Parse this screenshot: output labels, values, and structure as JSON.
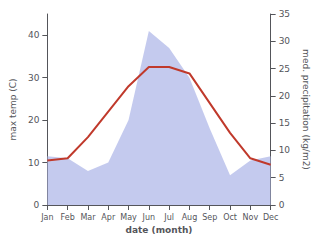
{
  "chart_data": {
    "type": "line",
    "xlabel": "date (month)",
    "ylabel": "max temp (C)",
    "y2label": "med. precipitation (kg/m2)",
    "categories": [
      "Jan",
      "Feb",
      "Mar",
      "Apr",
      "May",
      "Jun",
      "Jul",
      "Aug",
      "Sep",
      "Oct",
      "Nov",
      "Dec"
    ],
    "series": [
      {
        "type": "area",
        "color": "#b0b8e8",
        "values": [
          11.5,
          11.0,
          8.0,
          10.0,
          20.0,
          41.0,
          37.0,
          30.0,
          18.0,
          7.0,
          10.5,
          11.5
        ]
      },
      {
        "type": "line",
        "color": "#c0392b",
        "values": [
          10.5,
          11.0,
          16.0,
          22.0,
          28.0,
          32.5,
          32.5,
          31.0,
          24.0,
          17.0,
          11.0,
          9.5
        ]
      }
    ],
    "ylim": [
      0,
      45
    ],
    "yticks": [
      0,
      10,
      20,
      30,
      40
    ],
    "y2lim": [
      0,
      35
    ],
    "y2ticks": [
      0,
      5,
      10,
      15,
      20,
      25,
      30,
      35
    ],
    "grid": false
  }
}
